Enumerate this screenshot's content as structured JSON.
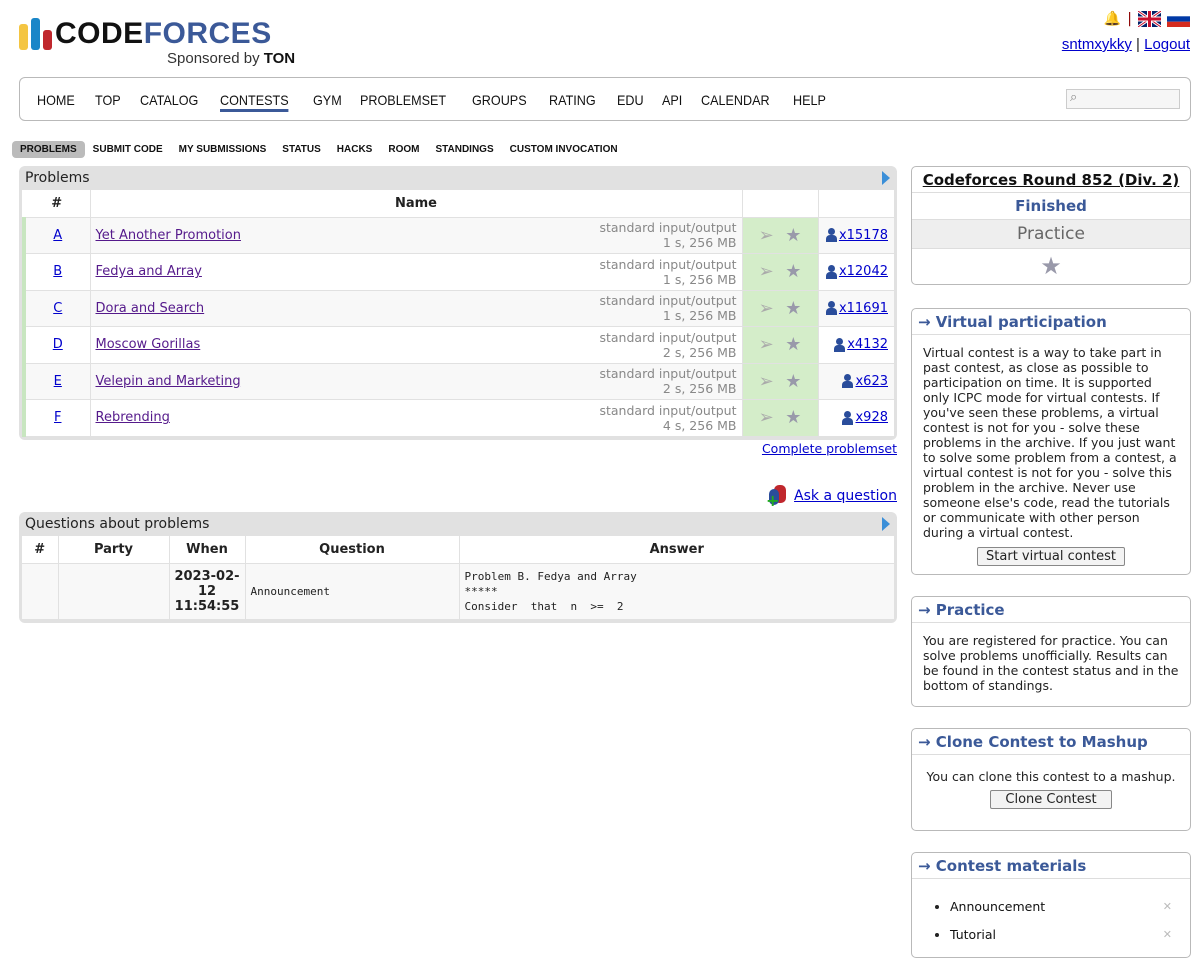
{
  "header": {
    "logo": {
      "word1": "CODE",
      "word2": "FORCES",
      "sponsor_prefix": "Sponsored by",
      "sponsor": "TON"
    },
    "username": "sntmxykky",
    "logout": "Logout",
    "separator": "|"
  },
  "menu": {
    "items": [
      "HOME",
      "TOP",
      "CATALOG",
      "CONTESTS",
      "GYM",
      "PROBLEMSET",
      "GROUPS",
      "RATING",
      "EDU",
      "API",
      "CALENDAR",
      "HELP"
    ],
    "active": "CONTESTS",
    "search_placeholder": ""
  },
  "subnav": {
    "items": [
      "PROBLEMS",
      "SUBMIT CODE",
      "MY SUBMISSIONS",
      "STATUS",
      "HACKS",
      "ROOM",
      "STANDINGS",
      "CUSTOM INVOCATION"
    ],
    "active": "PROBLEMS"
  },
  "problems": {
    "caption": "Problems",
    "headers": [
      "#",
      "Name"
    ],
    "rows": [
      {
        "idx": "A",
        "name": "Yet Another Promotion",
        "io": "standard input/output",
        "limits": "1 s, 256 MB",
        "solved": "x15178"
      },
      {
        "idx": "B",
        "name": "Fedya and Array",
        "io": "standard input/output",
        "limits": "1 s, 256 MB",
        "solved": "x12042"
      },
      {
        "idx": "C",
        "name": "Dora and Search",
        "io": "standard input/output",
        "limits": "1 s, 256 MB",
        "solved": "x11691"
      },
      {
        "idx": "D",
        "name": "Moscow Gorillas",
        "io": "standard input/output",
        "limits": "2 s, 256 MB",
        "solved": "x4132"
      },
      {
        "idx": "E",
        "name": "Velepin and Marketing",
        "io": "standard input/output",
        "limits": "2 s, 256 MB",
        "solved": "x623"
      },
      {
        "idx": "F",
        "name": "Rebrending",
        "io": "standard input/output",
        "limits": "4 s, 256 MB",
        "solved": "x928"
      }
    ],
    "complete_link": "Complete problemset"
  },
  "ask_question": "Ask a question",
  "questions": {
    "caption": "Questions about problems",
    "headers": [
      "#",
      "Party",
      "When",
      "Question",
      "Answer"
    ],
    "rows": [
      {
        "num": "",
        "party": "",
        "when": "2023-02-12 11:54:55",
        "question": "Announcement",
        "answer_lines": [
          "Problem B. Fedya and Array",
          "*****",
          "Consider  that  n  >=  2"
        ]
      }
    ]
  },
  "sidebar": {
    "contest": {
      "name": "Codeforces Round 852 (Div. 2)",
      "status": "Finished",
      "mode": "Practice"
    },
    "virtual": {
      "title": "→ Virtual participation",
      "text": "Virtual contest is a way to take part in past contest, as close as possible to participation on time. It is supported only ICPC mode for virtual contests. If you've seen these problems, a virtual contest is not for you - solve these problems in the archive. If you just want to solve some problem from a contest, a virtual contest is not for you - solve this problem in the archive. Never use someone else's code, read the tutorials or communicate with other person during a virtual contest.",
      "button": "Start virtual contest"
    },
    "practice": {
      "title": "→ Practice",
      "text": "You are registered for practice. You can solve problems unofficially. Results can be found in the contest status and in the bottom of standings."
    },
    "clone": {
      "title": "→ Clone Contest to Mashup",
      "text": "You can clone this contest to a mashup.",
      "button": "Clone Contest"
    },
    "materials": {
      "title": "→ Contest materials",
      "items": [
        "Announcement",
        "Tutorial"
      ]
    }
  },
  "colors": {
    "brand": "#3b5998",
    "accepted": "#d4edc9"
  }
}
